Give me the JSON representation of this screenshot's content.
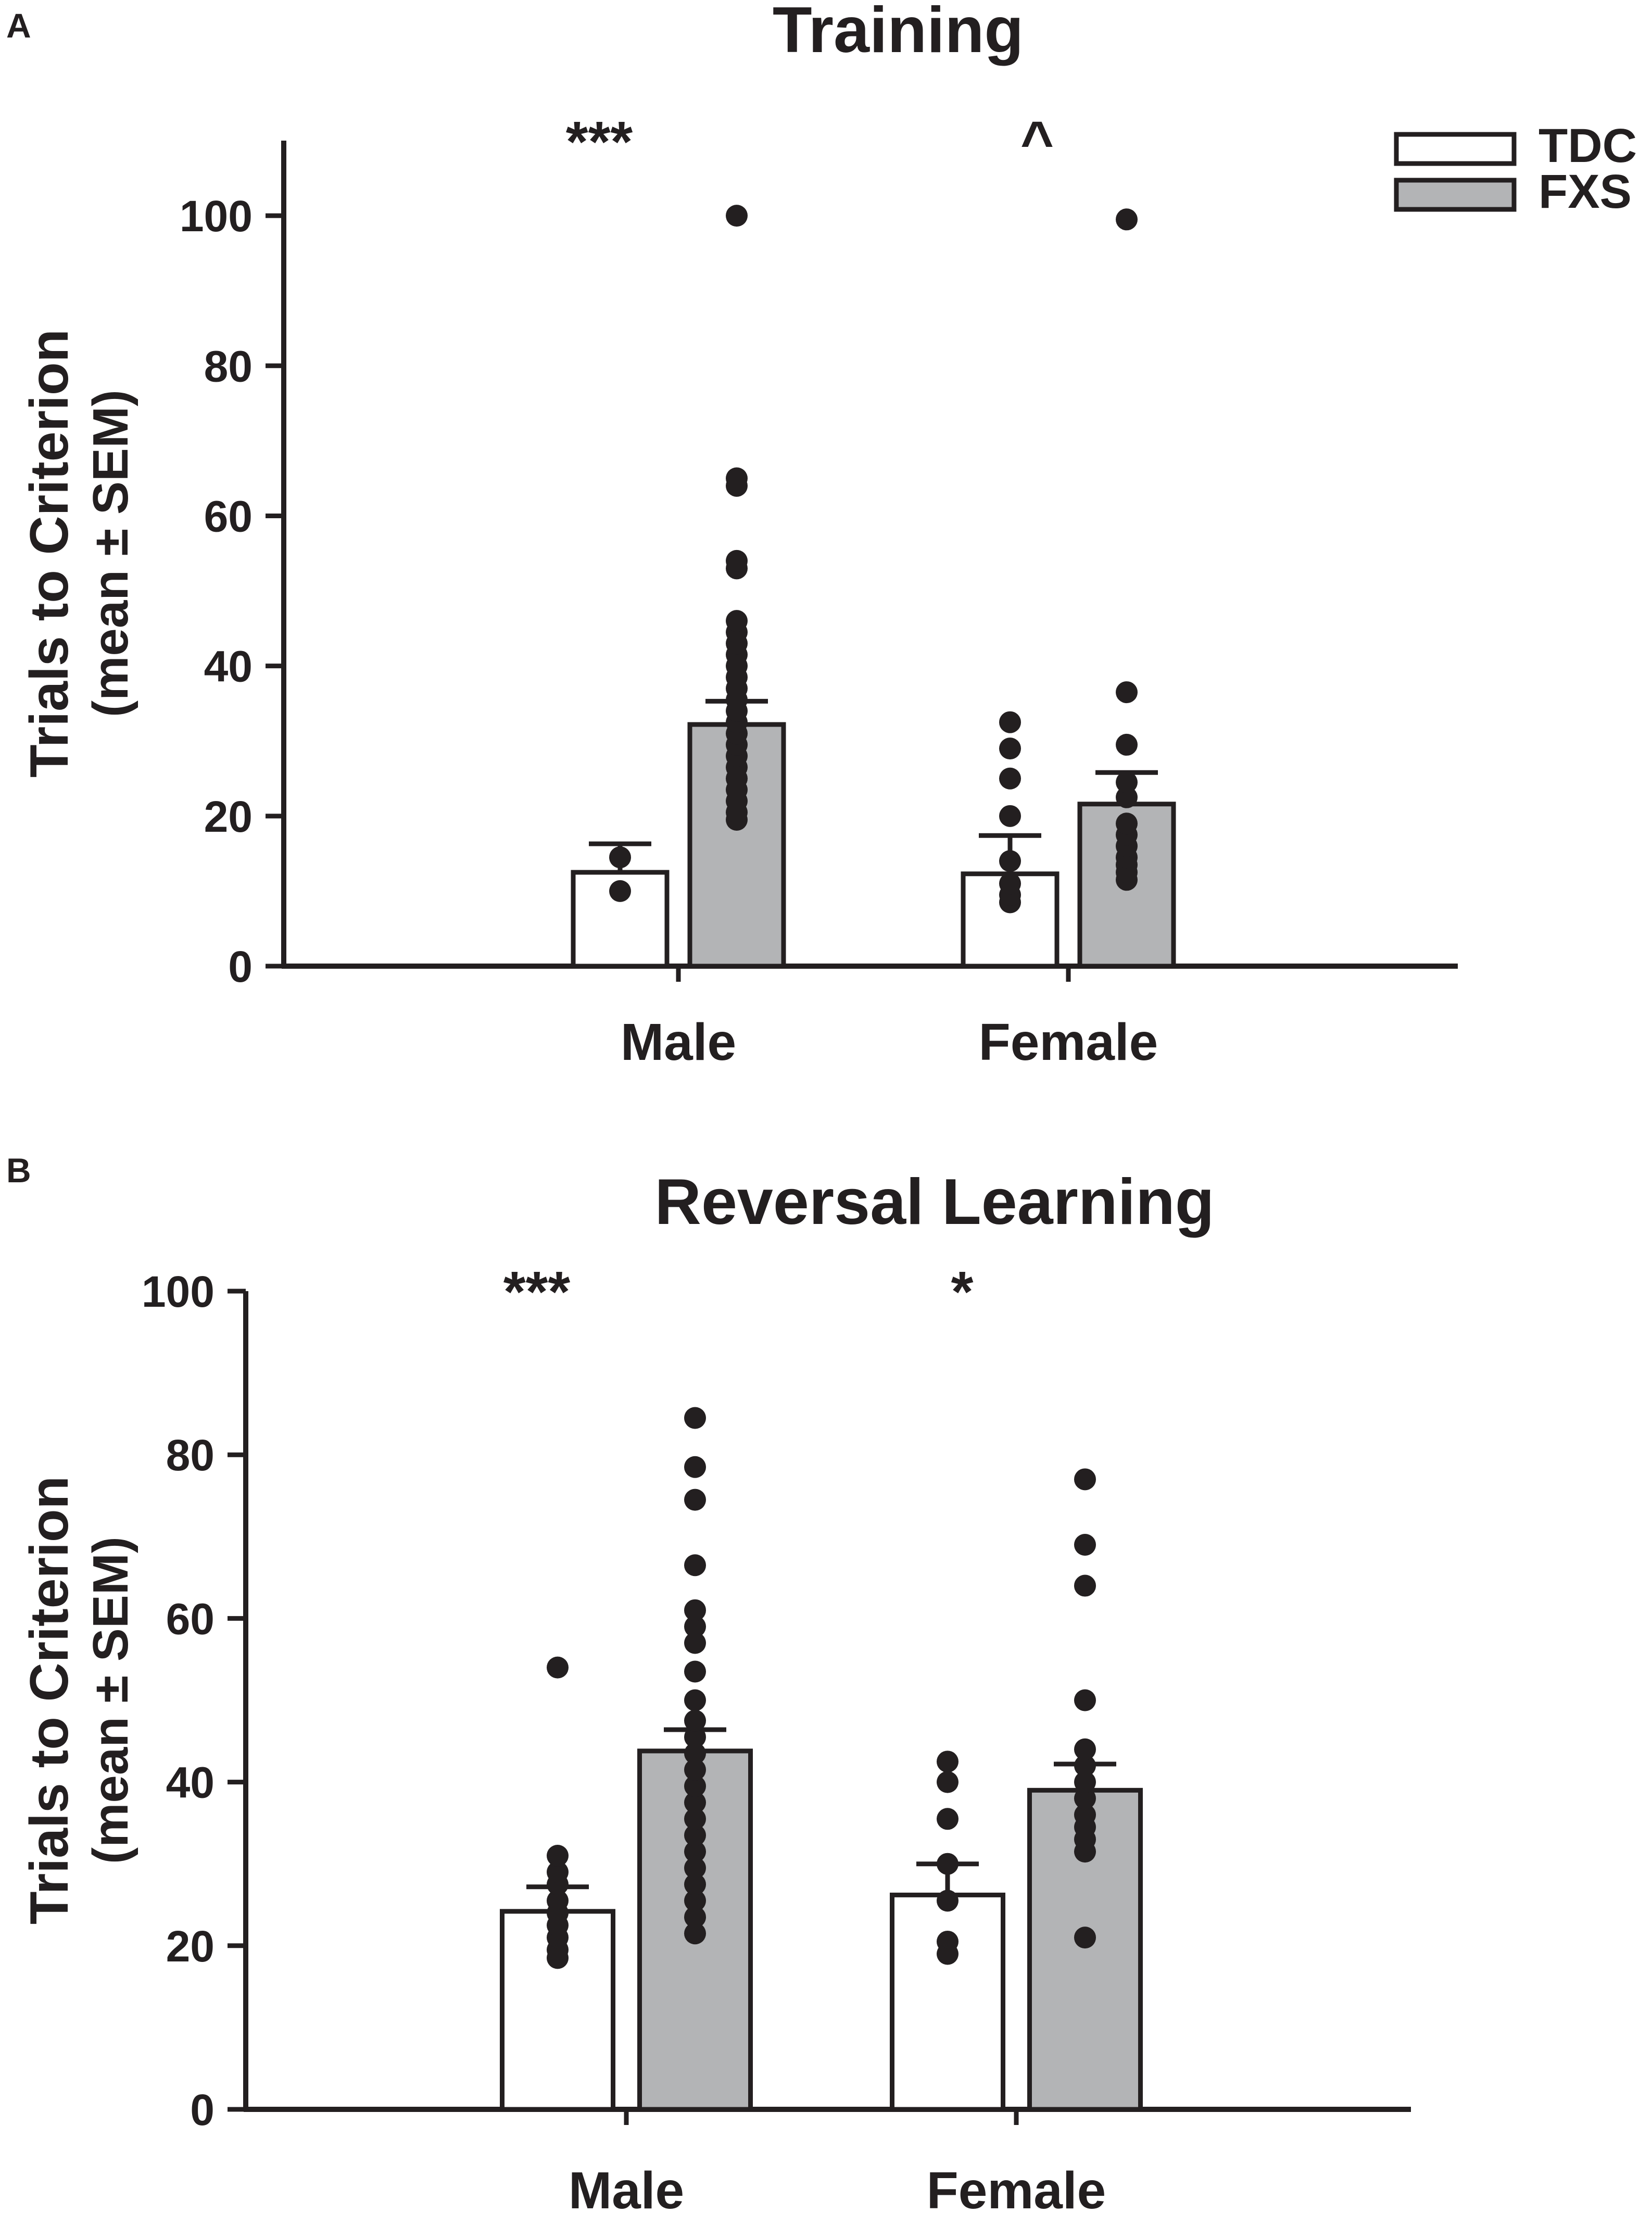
{
  "colors": {
    "ink": "#231f20",
    "tdc_fill": "#ffffff",
    "fxs_fill": "#b3b4b6"
  },
  "legend": {
    "items": [
      {
        "label": "TDC",
        "fill": "#ffffff"
      },
      {
        "label": "FXS",
        "fill": "#b3b4b6"
      }
    ]
  },
  "chart_data": [
    {
      "type": "bar",
      "panel_label": "A",
      "title": "Training",
      "xlabel": "",
      "ylabel_line1": "Trials to Criterion",
      "ylabel_line2": "(mean ± SEM)",
      "ylim": [
        0,
        110
      ],
      "yticks": [
        0,
        20,
        40,
        60,
        80,
        100
      ],
      "categories": [
        "Male",
        "Female"
      ],
      "significance": [
        "***",
        "^"
      ],
      "legend_position": "top-right",
      "series": [
        {
          "name": "TDC",
          "values": [
            12.5,
            12.3
          ],
          "sem": [
            3.8,
            5.1
          ],
          "points": [
            [
              10,
              14.5
            ],
            [
              8.5,
              9.5,
              11,
              14,
              20,
              25,
              29,
              32.5
            ]
          ]
        },
        {
          "name": "FXS",
          "values": [
            32.2,
            21.6
          ],
          "sem": [
            3.1,
            4.2
          ],
          "points": [
            [
              19.5,
              20.5,
              22,
              23.5,
              25,
              26.5,
              28,
              29.5,
              31,
              32.5,
              34,
              35.5,
              37,
              38.5,
              40,
              41.5,
              43,
              44.5,
              46,
              53,
              54,
              64,
              65,
              100
            ],
            [
              11.5,
              12.5,
              13.5,
              14.5,
              16,
              17.5,
              19,
              22.5,
              24.5,
              29.5,
              36.5,
              99.5
            ]
          ]
        }
      ]
    },
    {
      "type": "bar",
      "panel_label": "B",
      "title": "Reversal Learning",
      "xlabel": "",
      "ylabel_line1": "Trials to Criterion",
      "ylabel_line2": "(mean ± SEM)",
      "ylim": [
        0,
        100
      ],
      "yticks": [
        0,
        20,
        40,
        60,
        80,
        100
      ],
      "categories": [
        "Male",
        "Female"
      ],
      "significance": [
        "***",
        "*"
      ],
      "series": [
        {
          "name": "TDC",
          "values": [
            24.2,
            26.2
          ],
          "sem": [
            3.0,
            3.8
          ],
          "points": [
            [
              18.5,
              19.5,
              21,
              22.5,
              24,
              25.5,
              27.5,
              29,
              31,
              54
            ],
            [
              19,
              20.5,
              25.5,
              30,
              35.5,
              40,
              42.5
            ]
          ]
        },
        {
          "name": "FXS",
          "values": [
            43.8,
            39.0
          ],
          "sem": [
            2.6,
            3.2
          ],
          "points": [
            [
              21.5,
              23.5,
              25.5,
              27.5,
              29.5,
              31.5,
              33.5,
              35.5,
              37.5,
              39.5,
              41.5,
              43.5,
              45.5,
              47.5,
              50,
              53.5,
              57,
              59,
              61,
              66.5,
              74.5,
              78.5,
              84.5
            ],
            [
              21,
              31.5,
              33,
              34.5,
              36,
              38,
              40,
              42,
              44,
              50,
              64,
              69,
              77
            ]
          ]
        }
      ]
    }
  ]
}
